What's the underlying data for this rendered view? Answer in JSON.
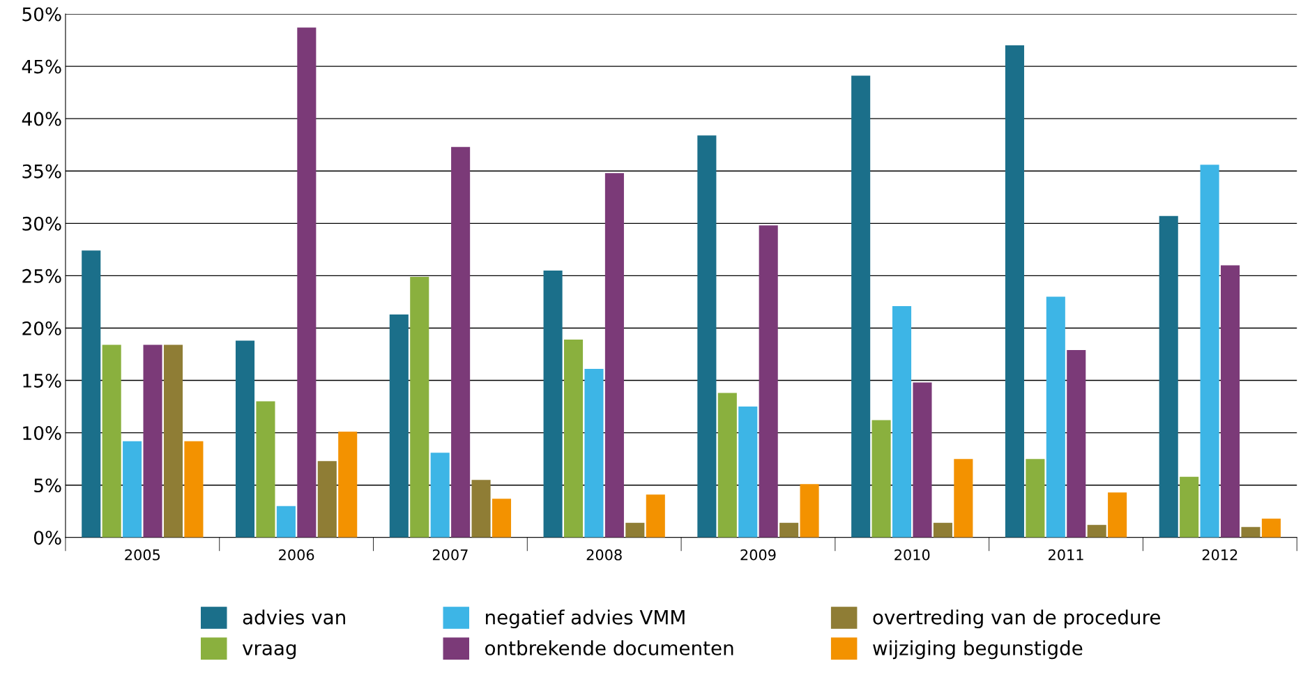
{
  "chart_data": {
    "type": "bar",
    "categories": [
      "2005",
      "2006",
      "2007",
      "2008",
      "2009",
      "2010",
      "2011",
      "2012"
    ],
    "series": [
      {
        "name": "advies van",
        "color": "#1b6f8a",
        "values": [
          27.4,
          18.8,
          21.3,
          25.5,
          38.4,
          44.1,
          47.0,
          30.7
        ]
      },
      {
        "name": "vraag",
        "color": "#8ab03e",
        "values": [
          18.4,
          13.0,
          24.9,
          18.9,
          13.8,
          11.2,
          7.5,
          5.8
        ]
      },
      {
        "name": "negatief advies VMM",
        "color": "#3db5e6",
        "values": [
          9.2,
          3.0,
          8.1,
          16.1,
          12.5,
          22.1,
          23.0,
          35.6
        ]
      },
      {
        "name": "ontbrekende documenten",
        "color": "#7b3a78",
        "values": [
          18.4,
          48.7,
          37.3,
          34.8,
          29.8,
          14.8,
          17.9,
          26.0
        ]
      },
      {
        "name": "overtreding van de procedure",
        "color": "#8f7d35",
        "values": [
          18.4,
          7.3,
          5.5,
          1.4,
          1.4,
          1.4,
          1.2,
          1.0
        ]
      },
      {
        "name": "wijziging begunstigde",
        "color": "#f39200",
        "values": [
          9.2,
          10.1,
          3.7,
          4.1,
          5.1,
          7.5,
          4.3,
          1.8
        ]
      }
    ],
    "ylim": [
      0,
      50
    ],
    "yticks": [
      {
        "value": 0,
        "label": "0%"
      },
      {
        "value": 5,
        "label": "5%"
      },
      {
        "value": 10,
        "label": "10%"
      },
      {
        "value": 15,
        "label": "15%"
      },
      {
        "value": 20,
        "label": "20%"
      },
      {
        "value": 25,
        "label": "25%"
      },
      {
        "value": 30,
        "label": "30%"
      },
      {
        "value": 35,
        "label": "35%"
      },
      {
        "value": 40,
        "label": "40%"
      },
      {
        "value": 45,
        "label": "45%"
      },
      {
        "value": 50,
        "label": "50%"
      }
    ],
    "grid": "y",
    "legend": "bottom"
  }
}
